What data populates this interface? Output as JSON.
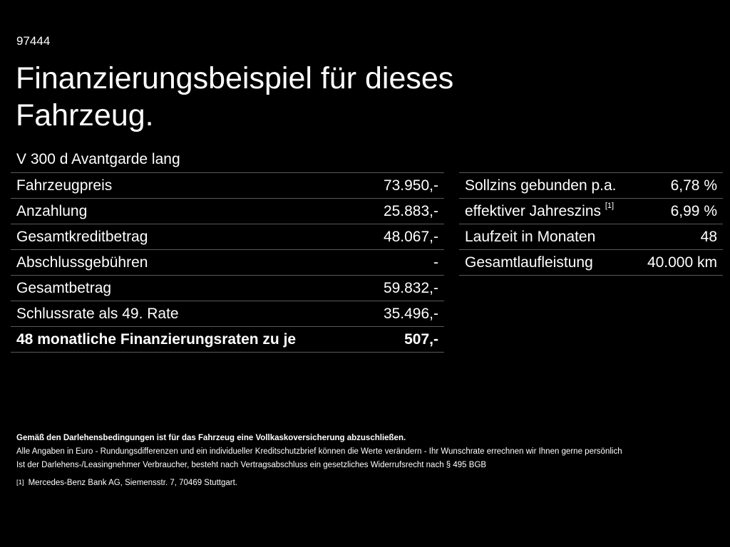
{
  "reference_number": "97444",
  "title": "Finanzierungsbeispiel für dieses Fahrzeug.",
  "model": "V 300 d Avantgarde lang",
  "left_table": [
    {
      "label": "Fahrzeugpreis",
      "value": "73.950,-"
    },
    {
      "label": "Anzahlung",
      "value": "25.883,-"
    },
    {
      "label": "Gesamtkreditbetrag",
      "value": "48.067,-"
    },
    {
      "label": "Abschlussgebühren",
      "value": "-"
    },
    {
      "label": "Gesamtbetrag",
      "value": "59.832,-"
    },
    {
      "label": "Schlussrate als 49. Rate",
      "value": "35.496,-"
    },
    {
      "label": "48 monatliche Finanzierungsraten zu je",
      "value": "507,-"
    }
  ],
  "right_table": [
    {
      "label": "Sollzins gebunden p.a.",
      "value": "6,78 %"
    },
    {
      "label": "effektiver Jahreszins",
      "sup": "[1]",
      "value": "6,99 %"
    },
    {
      "label": "Laufzeit in Monaten",
      "value": "48"
    },
    {
      "label": "Gesamtlaufleistung",
      "value": "40.000 km"
    }
  ],
  "notes": {
    "line1": "Gemäß den Darlehensbedingungen ist für das Fahrzeug eine Vollkaskoversicherung abzuschließen.",
    "line2": "Alle Angaben in Euro - Rundungsdifferenzen und ein individueller Kreditschutzbrief können die Werte verändern - Ihr Wunschrate errechnen wir Ihnen gerne persönlich",
    "line3": "Ist der Darlehens-/Leasingnehmer Verbraucher, besteht nach Vertragsabschluss ein gesetzliches Widerrufsrecht nach § 495 BGB"
  },
  "footnote": {
    "mark": "[1]",
    "text": "Mercedes-Benz Bank AG, Siemensstr. 7, 70469 Stuttgart."
  }
}
